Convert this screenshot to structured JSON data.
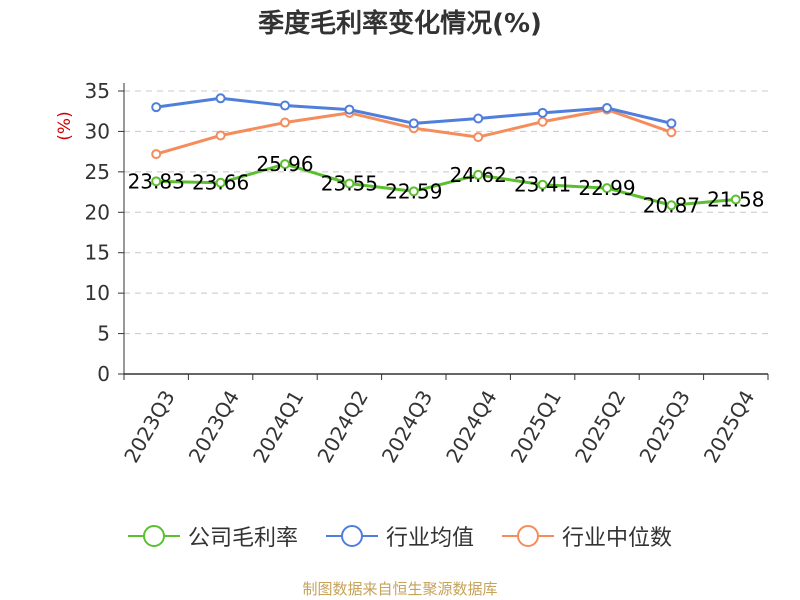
{
  "chart_data": {
    "type": "line",
    "title": "季度毛利率变化情况(%)",
    "ylabel": "(%)",
    "ylim": [
      0,
      35
    ],
    "yticks": [
      0,
      5,
      10,
      15,
      20,
      25,
      30,
      35
    ],
    "grid": true,
    "legend_position": "bottom",
    "categories": [
      "2023Q3",
      "2023Q4",
      "2024Q1",
      "2024Q2",
      "2024Q3",
      "2024Q4",
      "2025Q1",
      "2025Q2",
      "2025Q3",
      "2025Q4"
    ],
    "series": [
      {
        "name": "公司毛利率",
        "color": "#5bbf2f",
        "labels": true,
        "values": [
          23.83,
          23.66,
          25.96,
          23.55,
          22.59,
          24.62,
          23.41,
          22.99,
          20.87,
          21.58
        ]
      },
      {
        "name": "行业均值",
        "color": "#4f7fdb",
        "labels": false,
        "values": [
          33.0,
          34.1,
          33.2,
          32.7,
          31.0,
          31.6,
          32.3,
          32.9,
          31.0,
          null
        ]
      },
      {
        "name": "行业中位数",
        "color": "#f58c5c",
        "labels": false,
        "values": [
          27.2,
          29.5,
          31.1,
          32.3,
          30.4,
          29.3,
          31.2,
          32.7,
          29.9,
          null
        ]
      }
    ]
  },
  "source_note": "制图数据来自恒生聚源数据库"
}
